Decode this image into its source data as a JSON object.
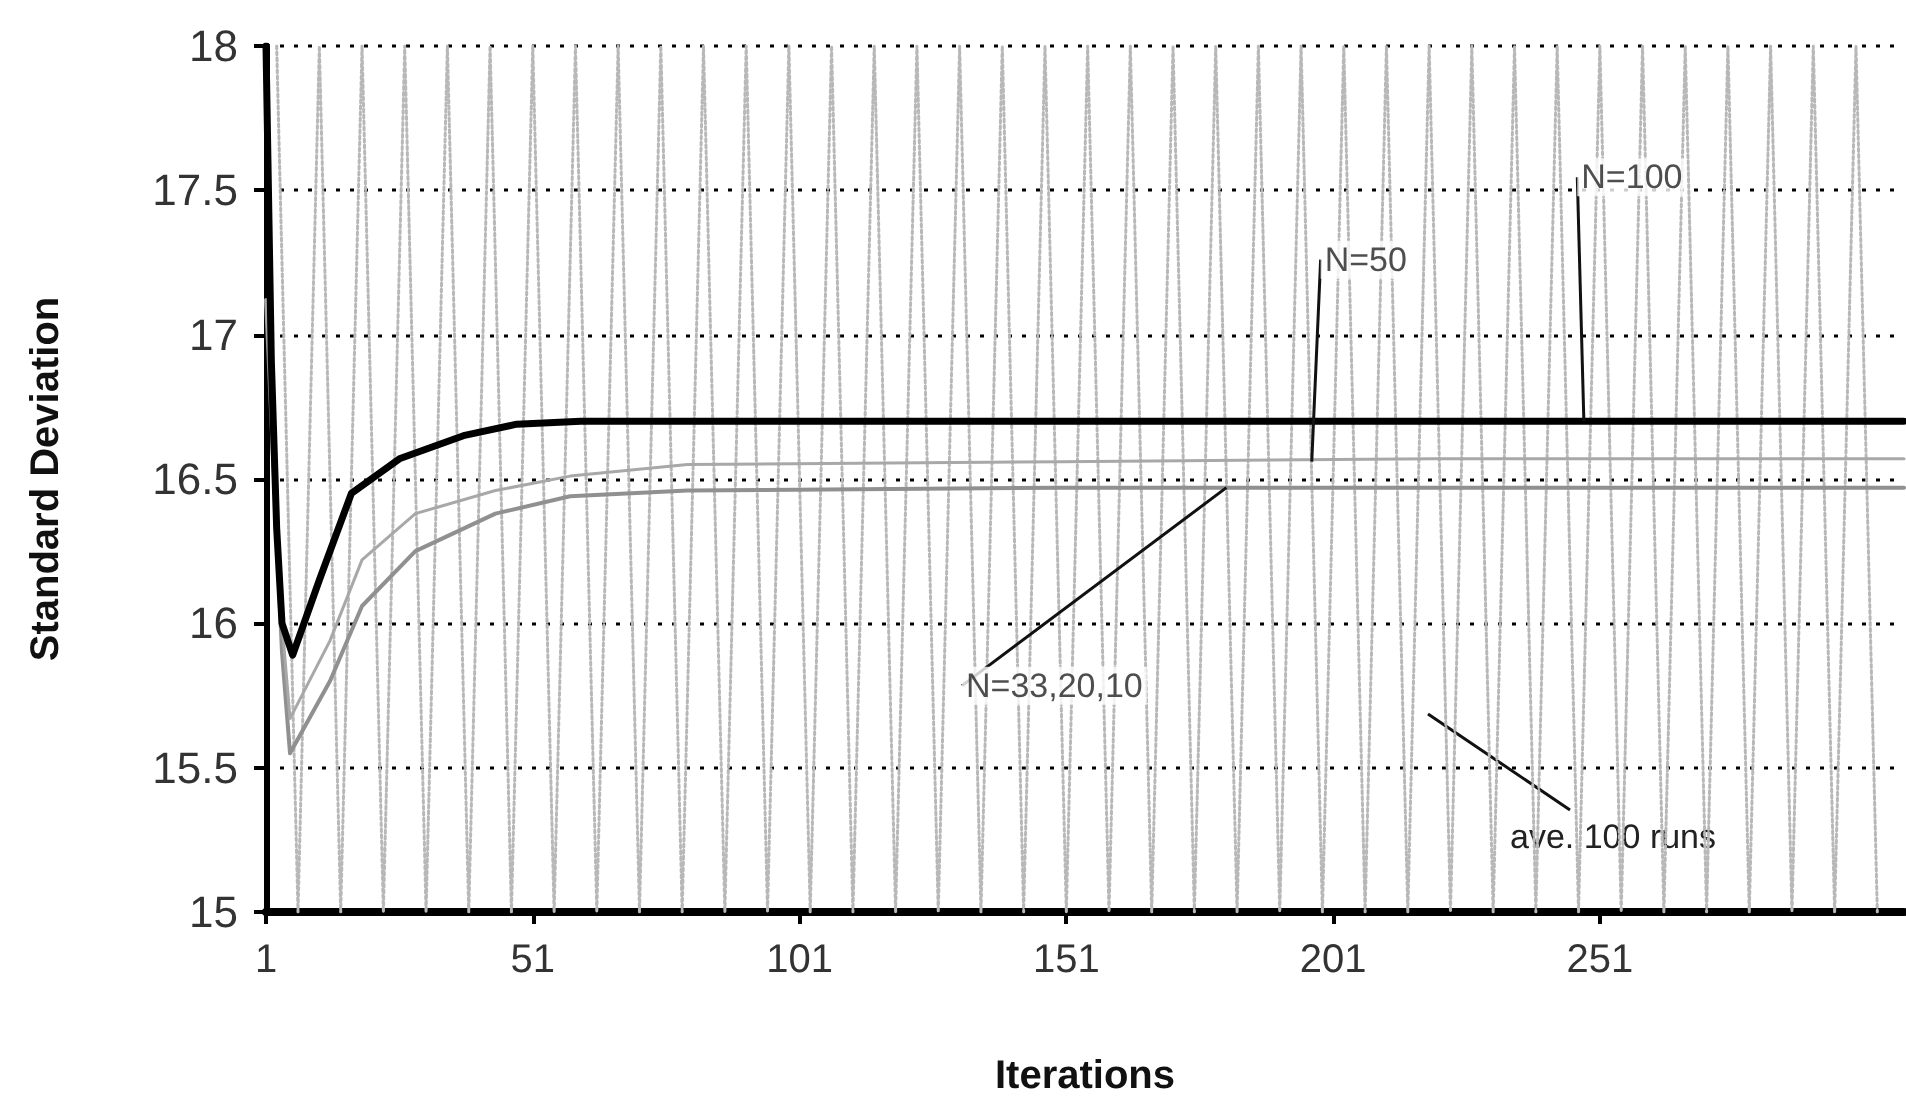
{
  "chart_data": {
    "type": "line",
    "xlabel": "Iterations",
    "ylabel": "Standard Deviation",
    "xlim": [
      1,
      308
    ],
    "xticks": [
      1,
      51,
      101,
      151,
      201,
      251
    ],
    "ylim": [
      15,
      18
    ],
    "yticks": [
      15,
      15.5,
      16,
      16.5,
      17,
      17.5,
      18
    ],
    "grid": "y",
    "marker": "none",
    "series": [
      {
        "color": "#b8b8b8",
        "line_style": "dotted",
        "x": [
          3,
          7,
          11,
          15,
          19,
          23,
          27,
          31,
          35,
          39,
          43,
          47,
          51,
          55,
          59,
          63,
          67,
          71,
          75,
          79,
          83,
          87,
          91,
          95,
          99,
          103,
          107,
          111,
          115,
          119,
          123,
          127,
          131,
          135,
          139,
          143,
          147,
          151,
          155,
          159,
          163,
          167,
          171,
          175,
          179,
          183,
          187,
          191,
          195,
          199,
          203,
          207,
          211,
          215,
          219,
          223,
          227,
          231,
          235,
          239,
          243,
          247,
          251,
          255,
          259,
          263,
          267,
          271,
          275,
          279,
          283,
          287,
          291,
          295,
          299,
          303
        ],
        "values": [
          18,
          15,
          18,
          15,
          18,
          15,
          18,
          15,
          18,
          15,
          18,
          15,
          18,
          15,
          18,
          15,
          18,
          15,
          18,
          15,
          18,
          15,
          18,
          15,
          18,
          15,
          18,
          15,
          18,
          15,
          18,
          15,
          18,
          15,
          18,
          15,
          18,
          15,
          18,
          15,
          18,
          15,
          18,
          15,
          18,
          15,
          18,
          15,
          18,
          15,
          18,
          15,
          18,
          15,
          18,
          15,
          18,
          15,
          18,
          15,
          18,
          15,
          18,
          15,
          18,
          15,
          18,
          15,
          18,
          15,
          18,
          15,
          18,
          15,
          18,
          15
        ]
      },
      {
        "color": "#909090",
        "line_style": "solid",
        "x": [
          1,
          3,
          4,
          5.5,
          13,
          19,
          29,
          44,
          58,
          80,
          150,
          220,
          308
        ],
        "values": [
          17.12,
          16.3,
          15.9,
          15.55,
          15.8,
          16.06,
          16.25,
          16.38,
          16.44,
          16.46,
          16.47,
          16.47,
          16.47
        ]
      },
      {
        "color": "#a8a8a8",
        "line_style": "solid",
        "x": [
          1,
          3,
          4,
          5.5,
          13,
          19,
          29,
          44,
          58,
          80,
          150,
          220,
          308
        ],
        "values": [
          17.12,
          16.4,
          16.0,
          15.67,
          15.94,
          16.22,
          16.38,
          16.46,
          16.51,
          16.55,
          16.56,
          16.57,
          16.57
        ]
      },
      {
        "color": "#000000",
        "line_style": "solid",
        "x": [
          1,
          2,
          3,
          4,
          6,
          11,
          17,
          26,
          38,
          48,
          60,
          150,
          308
        ],
        "values": [
          18,
          16.91,
          16.33,
          16.0,
          15.89,
          16.15,
          16.45,
          16.57,
          16.65,
          16.69,
          16.7,
          16.7,
          16.7
        ]
      }
    ],
    "annotations": [
      {
        "text": "N=100",
        "x": 248,
        "y": 16.7
      },
      {
        "text": "N=50",
        "x": 197,
        "y": 16.56
      },
      {
        "text": "N=33,20,10",
        "x": 181,
        "y": 16.47
      },
      "ave. 100 runs"
    ]
  }
}
